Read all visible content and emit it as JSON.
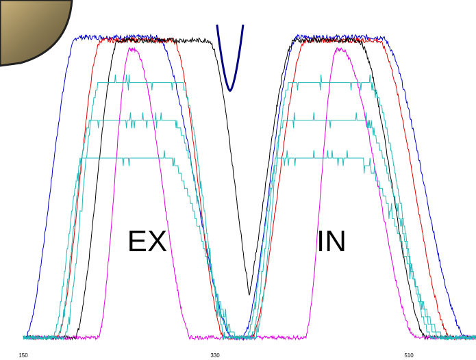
{
  "chart_data": {
    "type": "line",
    "title": "",
    "xlabel": "",
    "ylabel": "",
    "xlim": [
      150,
      566
    ],
    "ylim": [
      0,
      100
    ],
    "grid": false,
    "legend": "none",
    "x_ticks": [
      "150",
      "330",
      "510"
    ],
    "annotations": [
      {
        "text": "EX",
        "x": 213,
        "y": 30
      },
      {
        "text": "IN",
        "x": 385,
        "y": 30
      }
    ],
    "colors": {
      "blue": "#0000cc",
      "red": "#e00000",
      "black": "#000000",
      "magenta": "#e000e0",
      "cyan": "#20b8b8",
      "navy": "#000080"
    },
    "series": [
      {
        "color": "blue",
        "peaks": [
          {
            "start": 150,
            "top_start": 200,
            "top_end": 272,
            "end": 345,
            "height": 96
          },
          {
            "start": 350,
            "top_start": 402,
            "top_end": 478,
            "end": 560,
            "height": 96
          }
        ]
      },
      {
        "color": "red",
        "peaks": [
          {
            "start": 180,
            "top_start": 222,
            "top_end": 287,
            "end": 336,
            "height": 95
          },
          {
            "start": 358,
            "top_start": 410,
            "top_end": 475,
            "end": 545,
            "height": 95
          }
        ]
      },
      {
        "color": "black",
        "peaks": [
          {
            "start": 196,
            "top_start": 238,
            "top_end": 320,
            "end": 370,
            "height": 95
          },
          {
            "start": 344,
            "top_start": 400,
            "top_end": 457,
            "end": 522,
            "height": 95
          }
        ]
      },
      {
        "color": "magenta",
        "peaks": [
          {
            "start": 218,
            "top_start": 248,
            "top_end": 252,
            "end": 306,
            "height": 92
          },
          {
            "start": 408,
            "top_start": 438,
            "top_end": 442,
            "end": 513,
            "height": 92
          }
        ]
      },
      {
        "color": "cyan",
        "peaks": [
          {
            "start": 186,
            "top_start": 220,
            "top_end": 295,
            "end": 338,
            "height": 81
          },
          {
            "start": 362,
            "top_start": 395,
            "top_end": 468,
            "end": 528,
            "height": 81
          }
        ]
      },
      {
        "color": "cyan",
        "peaks": [
          {
            "start": 180,
            "top_start": 212,
            "top_end": 288,
            "end": 344,
            "height": 69
          },
          {
            "start": 358,
            "top_start": 390,
            "top_end": 462,
            "end": 535,
            "height": 69
          }
        ]
      },
      {
        "color": "cyan",
        "peaks": [
          {
            "start": 176,
            "top_start": 205,
            "top_end": 283,
            "end": 350,
            "height": 57
          },
          {
            "start": 354,
            "top_start": 385,
            "top_end": 458,
            "end": 541,
            "height": 57
          }
        ]
      }
    ],
    "overlay_curve": {
      "color": "navy",
      "x_center": 340,
      "bottom": 79,
      "top": 100,
      "half_width": 12
    }
  }
}
